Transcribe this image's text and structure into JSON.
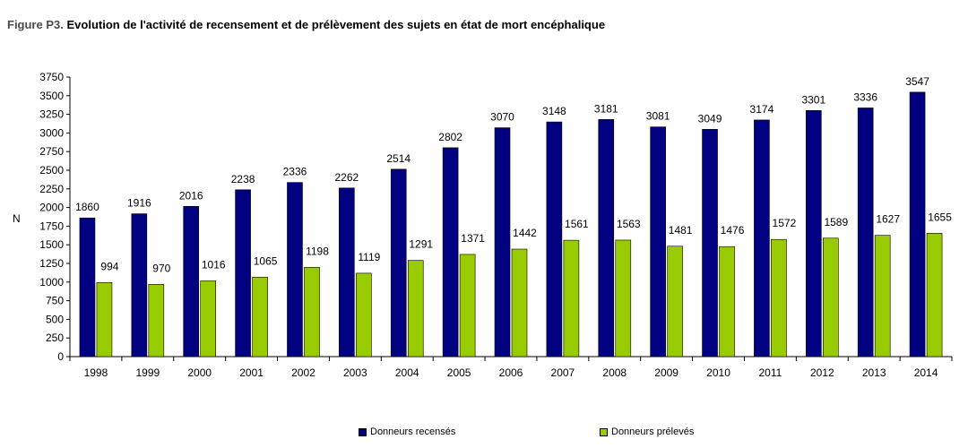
{
  "figure": {
    "prefix": "Figure P3.",
    "title": "Evolution de l'activité de recensement et de prélèvement des sujets en état de mort encéphalique"
  },
  "chart_data": {
    "type": "bar",
    "categories": [
      "1998",
      "1999",
      "2000",
      "2001",
      "2002",
      "2003",
      "2004",
      "2005",
      "2006",
      "2007",
      "2008",
      "2009",
      "2010",
      "2011",
      "2012",
      "2013",
      "2014"
    ],
    "series": [
      {
        "name": "Donneurs recensés",
        "color": "#000080",
        "values": [
          1860,
          1916,
          2016,
          2238,
          2336,
          2262,
          2514,
          2802,
          3070,
          3148,
          3181,
          3081,
          3049,
          3174,
          3301,
          3336,
          3547
        ]
      },
      {
        "name": "Donneurs prélevés",
        "color": "#99CC00",
        "values": [
          994,
          970,
          1016,
          1065,
          1198,
          1119,
          1291,
          1371,
          1442,
          1561,
          1563,
          1481,
          1476,
          1572,
          1589,
          1627,
          1655
        ]
      }
    ],
    "ylabel": "N",
    "ylim": [
      0,
      3750
    ],
    "yticks": [
      0,
      250,
      500,
      750,
      1000,
      1250,
      1500,
      1750,
      2000,
      2250,
      2500,
      2750,
      3000,
      3250,
      3500,
      3750
    ],
    "grid": false,
    "legend": "bottom"
  }
}
